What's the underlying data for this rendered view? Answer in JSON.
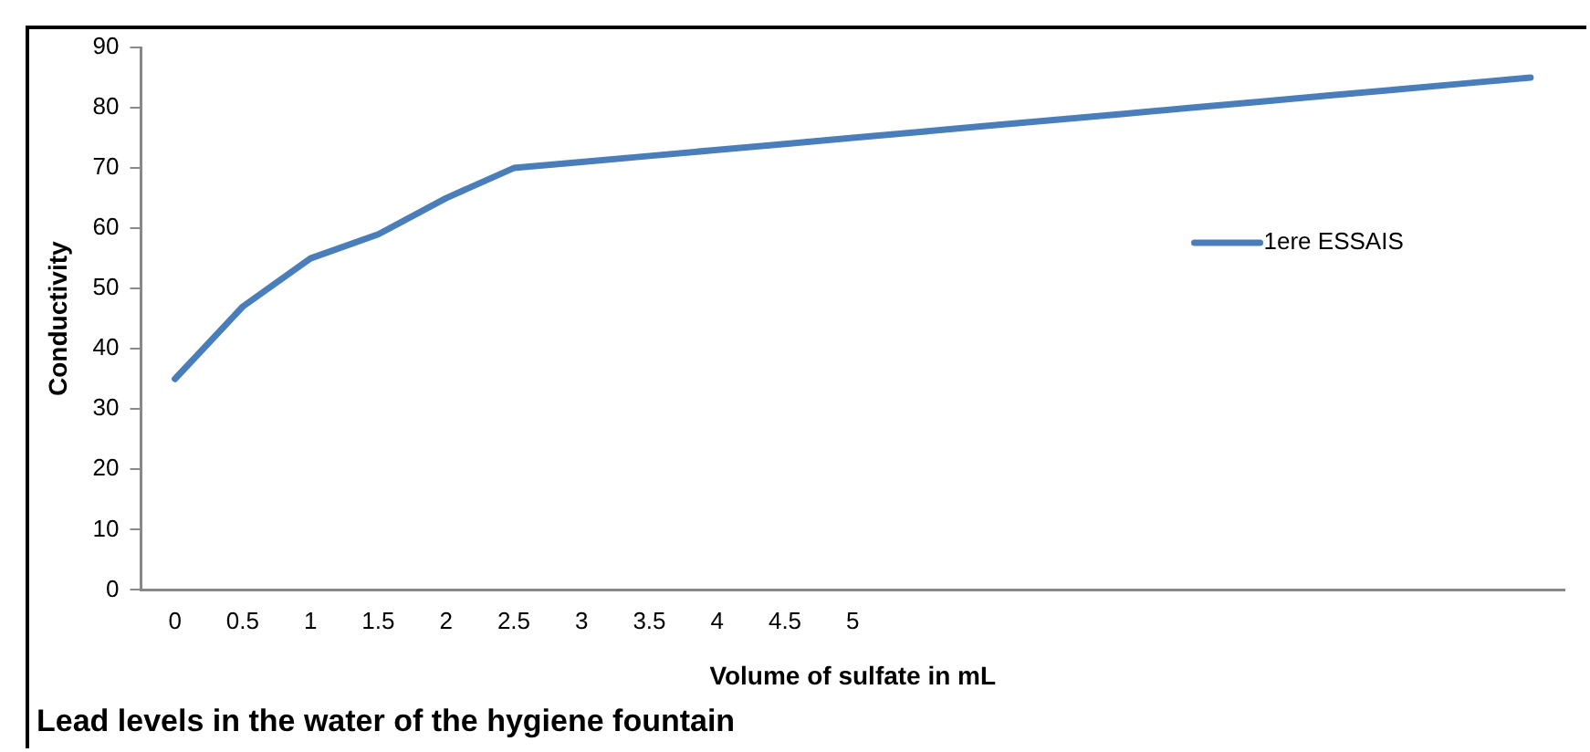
{
  "chart_data": {
    "type": "line",
    "title": "Lead levels in the water of the hygiene fountain",
    "xlabel": "Volume of sulfate in mL",
    "ylabel": "Conductivity",
    "categories": [
      "0",
      "0.5",
      "1",
      "1.5",
      "2",
      "2.5",
      "3",
      "3.5",
      "4",
      "4.5",
      "5",
      null,
      null,
      null,
      null,
      null,
      null,
      null,
      null,
      null,
      null
    ],
    "series": [
      {
        "name": "1ere ESSAIS",
        "color": "#4a7ebb",
        "values": [
          35,
          47,
          55,
          59,
          65,
          70,
          71,
          72,
          73,
          74,
          75,
          76,
          77,
          78,
          79,
          80,
          81,
          82,
          83,
          84,
          85
        ]
      }
    ],
    "ylim": [
      0,
      90
    ],
    "yticks": [
      0,
      10,
      20,
      30,
      40,
      50,
      60,
      70,
      80,
      90
    ],
    "grid": false,
    "legend": "right",
    "marker": "none",
    "line_style": "solid"
  }
}
